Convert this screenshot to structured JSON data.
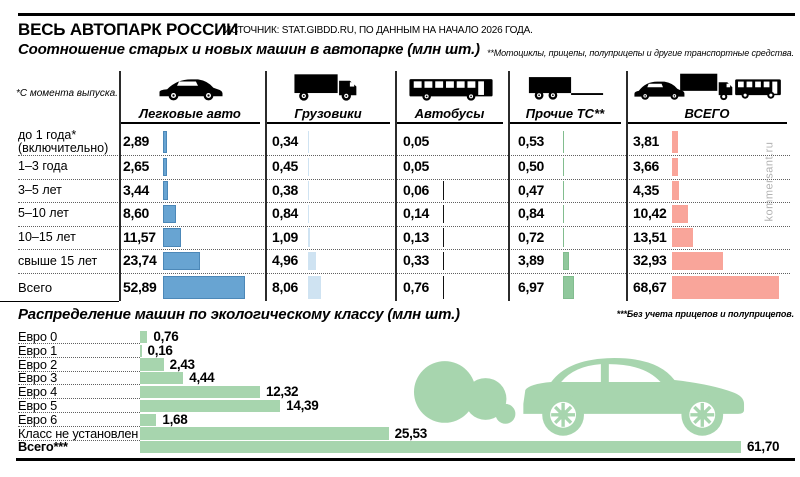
{
  "header": {
    "title": "ВЕСЬ АВТОПАРК РОССИИ",
    "source": "ИСТОЧНИК: STAT.GIBDD.RU, ПО ДАННЫМ НА НАЧАЛО 2026 ГОДА.",
    "subtitle": "Соотношение старых и новых машин в автопарке (млн шт.)",
    "footnote_other_vehicles": "**Мотоциклы, прицепы, полуприцепы и другие транспортные средства."
  },
  "fleet_table": {
    "age_note": "*С момента выпуска.",
    "columns": [
      {
        "label": "Легковые авто",
        "icon": "car-icon",
        "bar_color": "#68a4d2",
        "bar_border": "#4c88b8"
      },
      {
        "label": "Грузовики",
        "icon": "truck-icon",
        "bar_color": "#cfe3f2",
        "bar_border": "#cfe3f2"
      },
      {
        "label": "Автобусы",
        "icon": "bus-icon",
        "bar_color": "#111111",
        "bar_border": "#111111"
      },
      {
        "label": "Прочие ТС**",
        "icon": "trailer-icon",
        "bar_color": "#90c89c",
        "bar_border": "#82bd8f"
      },
      {
        "label": "ВСЕГО",
        "icon": "car-truck-bus-icon",
        "bar_color": "#f9a59a",
        "bar_border": "#f9a59a"
      }
    ]
  },
  "eco_section": {
    "title": "Распределение машин по экологическому классу (млн шт.)",
    "footnote_no_trailers": "***Без учета прицепов и полуприцепов.",
    "bar_color": "#a7d5ae",
    "illustration": "car-exhaust-illustration"
  },
  "watermark": "kommersant.ru",
  "chart_data": [
    {
      "type": "table",
      "title": "Соотношение старых и новых машин в автопарке (млн шт.)",
      "categories": [
        "до 1 года*\n(включительно)",
        "1–3 года",
        "3–5 лет",
        "5–10 лет",
        "10–15 лет",
        "свыше 15 лет",
        "Всего"
      ],
      "series": [
        {
          "name": "Легковые авто",
          "values": [
            2.89,
            2.65,
            3.44,
            8.6,
            11.57,
            23.74,
            52.89
          ]
        },
        {
          "name": "Грузовики",
          "values": [
            0.34,
            0.45,
            0.38,
            0.84,
            1.09,
            4.96,
            8.06
          ]
        },
        {
          "name": "Автобусы",
          "values": [
            0.05,
            0.05,
            0.06,
            0.14,
            0.13,
            0.33,
            0.76
          ]
        },
        {
          "name": "Прочие ТС**",
          "values": [
            0.53,
            0.5,
            0.47,
            0.84,
            0.72,
            3.89,
            6.97
          ]
        },
        {
          "name": "ВСЕГО",
          "values": [
            3.81,
            3.66,
            4.35,
            10.42,
            13.51,
            32.93,
            68.67
          ]
        }
      ],
      "value_unit": "млн шт.",
      "legend_position": "column headers",
      "grid": "dotted row separators"
    },
    {
      "type": "bar",
      "title": "Распределение машин по экологическому классу (млн шт.)",
      "categories": [
        "Евро 0",
        "Евро 1",
        "Евро 2",
        "Евро 3",
        "Евро 4",
        "Евро 5",
        "Евро 6",
        "Класс не установлен",
        "Всего***"
      ],
      "values": [
        0.76,
        0.16,
        2.43,
        4.44,
        12.32,
        14.39,
        1.68,
        25.53,
        61.7
      ],
      "xlabel": "",
      "ylabel": "",
      "xlim": [
        0,
        65
      ],
      "orientation": "horizontal",
      "value_unit": "млн шт."
    }
  ]
}
